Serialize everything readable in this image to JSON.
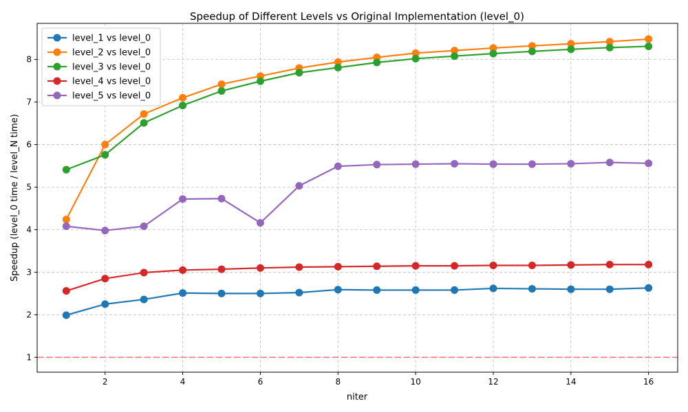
{
  "chart_data": {
    "type": "line",
    "title": "Speedup of Different Levels vs Original Implementation (level_0)",
    "xlabel": "niter",
    "ylabel": "Speedup (level_0 time / level_N time)",
    "xlim": [
      0.25,
      16.75
    ],
    "ylim": [
      0.65,
      8.85
    ],
    "xticks": [
      2,
      4,
      6,
      8,
      10,
      12,
      14,
      16
    ],
    "yticks": [
      1,
      2,
      3,
      4,
      5,
      6,
      7,
      8
    ],
    "grid": true,
    "legend_position": "top-left",
    "reference_line": {
      "y": 1,
      "color": "#ff6b6b"
    },
    "x": [
      1,
      2,
      3,
      4,
      5,
      6,
      7,
      8,
      9,
      10,
      11,
      12,
      13,
      14,
      15,
      16
    ],
    "series": [
      {
        "name": "level_1 vs level_0",
        "color": "#1f77b4",
        "values": [
          1.99,
          2.25,
          2.36,
          2.51,
          2.5,
          2.5,
          2.52,
          2.59,
          2.58,
          2.58,
          2.58,
          2.62,
          2.61,
          2.6,
          2.6,
          2.63
        ]
      },
      {
        "name": "level_2 vs level_0",
        "color": "#ff7f0e",
        "values": [
          4.24,
          6.0,
          6.72,
          7.1,
          7.42,
          7.61,
          7.8,
          7.94,
          8.05,
          8.15,
          8.21,
          8.27,
          8.32,
          8.37,
          8.42,
          8.48
        ]
      },
      {
        "name": "level_3 vs level_0",
        "color": "#2ca02c",
        "values": [
          5.41,
          5.76,
          6.51,
          6.92,
          7.26,
          7.49,
          7.69,
          7.81,
          7.93,
          8.02,
          8.08,
          8.14,
          8.19,
          8.24,
          8.28,
          8.31
        ]
      },
      {
        "name": "level_4 vs level_0",
        "color": "#d62728",
        "values": [
          2.56,
          2.85,
          2.99,
          3.05,
          3.07,
          3.1,
          3.12,
          3.13,
          3.14,
          3.15,
          3.15,
          3.16,
          3.16,
          3.17,
          3.18,
          3.18
        ]
      },
      {
        "name": "level_5 vs level_0",
        "color": "#9467bd",
        "values": [
          4.08,
          3.98,
          4.08,
          4.72,
          4.73,
          4.16,
          5.03,
          5.49,
          5.53,
          5.54,
          5.55,
          5.54,
          5.54,
          5.55,
          5.58,
          5.56
        ]
      }
    ]
  }
}
